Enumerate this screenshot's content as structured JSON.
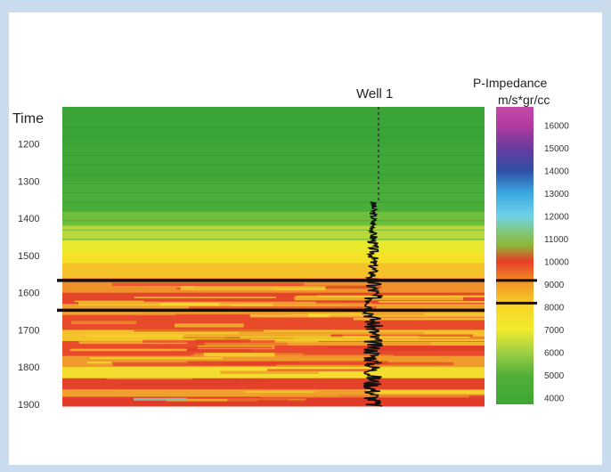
{
  "figure": {
    "well_label": "Well 1",
    "time_label": "Time",
    "colorbar_title_line1": "P-Impedance",
    "colorbar_title_line2": "m/s*gr/cc"
  },
  "time_axis": {
    "ticks": [
      "1200",
      "1300",
      "1400",
      "1500",
      "1600",
      "1700",
      "1800",
      "1900"
    ],
    "range": [
      1100,
      1905
    ]
  },
  "colorbar": {
    "ticks": [
      "16000",
      "15000",
      "14000",
      "13000",
      "12000",
      "11000",
      "10000",
      "9000",
      "8000",
      "7000",
      "6000",
      "5000",
      "4000"
    ],
    "range": [
      3700,
      16800
    ],
    "stops": [
      {
        "value": 3700,
        "color": "#3da634"
      },
      {
        "value": 5000,
        "color": "#52b038"
      },
      {
        "value": 6000,
        "color": "#9fd046"
      },
      {
        "value": 7000,
        "color": "#f2ec2a"
      },
      {
        "value": 8000,
        "color": "#f8d52a"
      },
      {
        "value": 9000,
        "color": "#f29a25"
      },
      {
        "value": 10000,
        "color": "#e63d26"
      },
      {
        "value": 10700,
        "color": "#8fb53a"
      },
      {
        "value": 11300,
        "color": "#7fc87a"
      },
      {
        "value": 12000,
        "color": "#6fd2e8"
      },
      {
        "value": 13000,
        "color": "#3aa8e0"
      },
      {
        "value": 14000,
        "color": "#2f4ea6"
      },
      {
        "value": 15000,
        "color": "#6b3b9e"
      },
      {
        "value": 16000,
        "color": "#b43aa0"
      },
      {
        "value": 16800,
        "color": "#c44aa8"
      }
    ],
    "markers": [
      9000,
      8000
    ]
  },
  "horizons": [
    {
      "time": 1567
    },
    {
      "time": 1647
    }
  ],
  "well": {
    "dashed_from": 1100,
    "dashed_to": 1355,
    "log_from": 1355,
    "log_to": 1905
  },
  "section_layers": [
    {
      "from": 1100,
      "to": 1200,
      "color": "#3aa436"
    },
    {
      "from": 1200,
      "to": 1300,
      "color": "#3fa838"
    },
    {
      "from": 1300,
      "to": 1380,
      "color": "#49ad39"
    },
    {
      "from": 1380,
      "to": 1420,
      "color": "#6fbe3e"
    },
    {
      "from": 1420,
      "to": 1460,
      "color": "#b9d83d"
    },
    {
      "from": 1460,
      "to": 1490,
      "color": "#e9ea2e"
    },
    {
      "from": 1490,
      "to": 1520,
      "color": "#f6e129"
    },
    {
      "from": 1520,
      "to": 1560,
      "color": "#f6c22a"
    },
    {
      "from": 1560,
      "to": 1600,
      "color": "#f0902a"
    },
    {
      "from": 1600,
      "to": 1630,
      "color": "#e5452a"
    },
    {
      "from": 1630,
      "to": 1660,
      "color": "#f2a02c"
    },
    {
      "from": 1660,
      "to": 1700,
      "color": "#e84b2a"
    },
    {
      "from": 1700,
      "to": 1730,
      "color": "#f4c32b"
    },
    {
      "from": 1730,
      "to": 1770,
      "color": "#e84a2b"
    },
    {
      "from": 1770,
      "to": 1800,
      "color": "#f09a2c"
    },
    {
      "from": 1800,
      "to": 1830,
      "color": "#f3dd2e"
    },
    {
      "from": 1830,
      "to": 1860,
      "color": "#e4432a"
    },
    {
      "from": 1860,
      "to": 1880,
      "color": "#f0a02c"
    },
    {
      "from": 1880,
      "to": 1905,
      "color": "#e23c28"
    }
  ]
}
